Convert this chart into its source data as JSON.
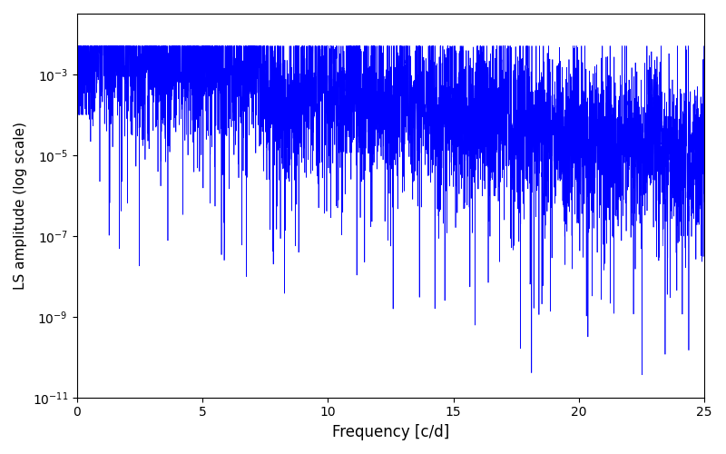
{
  "title": "",
  "xlabel": "Frequency [c/d]",
  "ylabel": "LS amplitude (log scale)",
  "xlim": [
    0,
    25
  ],
  "ylim_log": [
    -11,
    -1.5
  ],
  "line_color": "#0000ff",
  "linewidth": 0.5,
  "yscale": "log",
  "figsize": [
    8.0,
    5.0
  ],
  "dpi": 100,
  "freq_max": 25.0,
  "n_points": 5000,
  "seed": 42
}
